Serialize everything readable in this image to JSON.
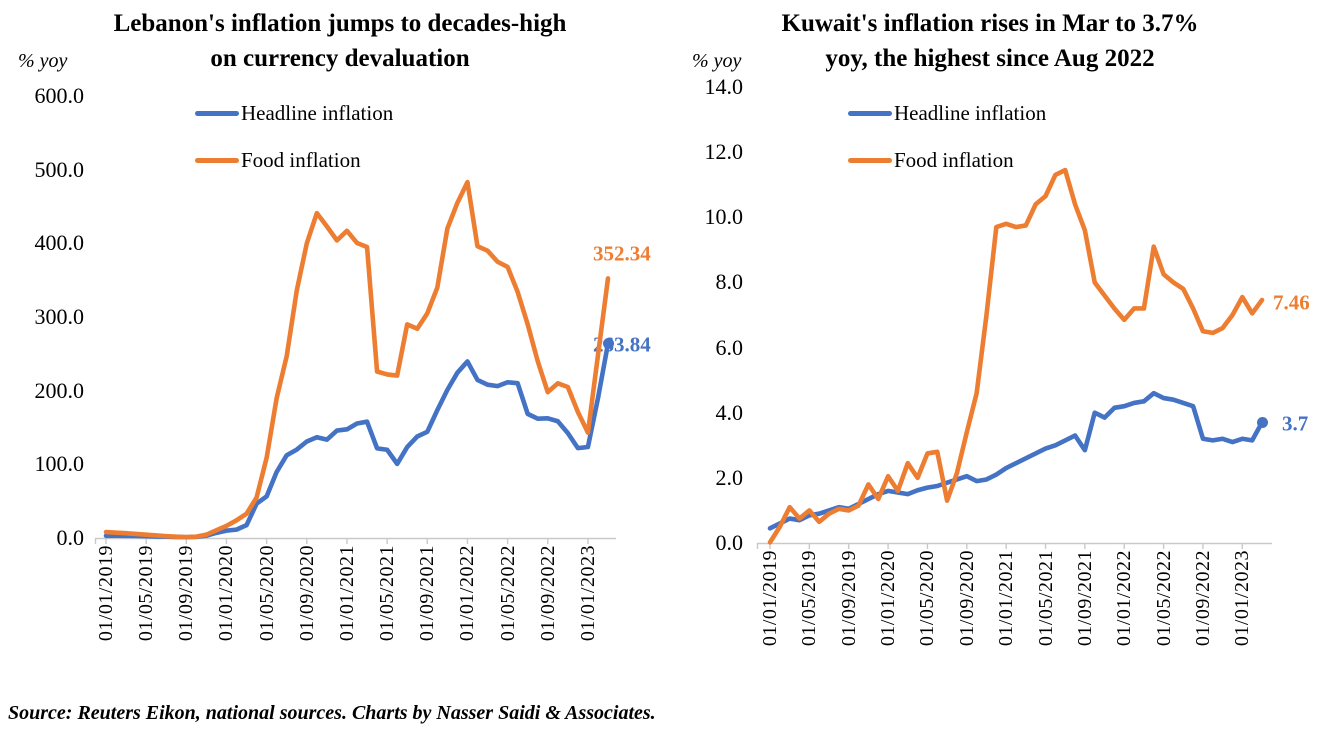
{
  "figure": {
    "source_note": "Source: Reuters Eikon, national sources. Charts by Nasser Saidi & Associates."
  },
  "x_tick_labels": [
    "01/01/2019",
    "01/05/2019",
    "01/09/2019",
    "01/01/2020",
    "01/05/2020",
    "01/09/2020",
    "01/01/2021",
    "01/05/2021",
    "01/09/2021",
    "01/01/2022",
    "01/05/2022",
    "01/09/2022",
    "01/01/2023"
  ],
  "chart_data": [
    {
      "type": "line",
      "title": "Lebanon's inflation jumps to decades-high on currency devaluation",
      "title_lines": [
        "Lebanon's inflation jumps to decades-high",
        "on currency devaluation"
      ],
      "unit_label": "% yoy",
      "ylim": [
        0,
        600
      ],
      "ytick_labels": [
        "600.0",
        "500.0",
        "400.0",
        "300.0",
        "200.0",
        "100.0",
        "0.0"
      ],
      "x_start": "01/2019",
      "x_end": "03/2023",
      "x_frequency": "monthly",
      "grid": false,
      "legend_position": "top-left-inside",
      "series": [
        {
          "name": "Headline inflation",
          "color": "#4472C4",
          "end_dot": true,
          "last_value_label": "263.84",
          "values": [
            3.0,
            3.1,
            3.0,
            2.7,
            2.5,
            2.0,
            1.8,
            1.5,
            1.2,
            1.6,
            3.2,
            7.0,
            10.0,
            11.4,
            17.5,
            46.6,
            56.5,
            89.7,
            112.4,
            120.0,
            131.0,
            136.8,
            133.5,
            145.8,
            147.5,
            155.4,
            157.9,
            121.7,
            119.8,
            100.6,
            123.4,
            137.8,
            144.1,
            173.6,
            201.1,
            224.4,
            239.7,
            214.6,
            208.1,
            206.2,
            211.4,
            210.1,
            168.5,
            161.9,
            162.5,
            158.5,
            142.4,
            122.0,
            123.5,
            189.7,
            263.84
          ]
        },
        {
          "name": "Food inflation",
          "color": "#ED7D31",
          "end_dot": false,
          "last_value_label": "352.34",
          "values": [
            8.0,
            7.2,
            6.5,
            5.5,
            4.5,
            3.5,
            2.5,
            1.8,
            1.2,
            1.8,
            4.5,
            10.5,
            16.5,
            24.0,
            33.0,
            55.0,
            109.0,
            190.0,
            247.0,
            336.0,
            400.0,
            441.0,
            423.0,
            404.0,
            417.0,
            400.5,
            395.0,
            226.0,
            222.0,
            220.5,
            290.0,
            284.0,
            305.0,
            340.0,
            420.0,
            455.0,
            483.1,
            396.0,
            390.0,
            375.0,
            368.0,
            334.0,
            290.0,
            240.0,
            198.0,
            210.0,
            205.0,
            171.0,
            143.0,
            248.0,
            352.34
          ]
        }
      ]
    },
    {
      "type": "line",
      "title": "Kuwait's inflation rises in Mar to 3.7% yoy, the highest since Aug 2022",
      "title_lines": [
        "Kuwait's inflation rises in Mar to 3.7%",
        "yoy, the highest since Aug 2022"
      ],
      "unit_label": "% yoy",
      "ylim": [
        0,
        14
      ],
      "ytick_labels": [
        "14.0",
        "12.0",
        "10.0",
        "8.0",
        "6.0",
        "4.0",
        "2.0",
        "0.0"
      ],
      "x_start": "01/2019",
      "x_end": "03/2023",
      "x_frequency": "monthly",
      "grid": false,
      "legend_position": "top-left-inside",
      "series": [
        {
          "name": "Headline inflation",
          "color": "#4472C4",
          "end_dot": true,
          "last_value_label": "3.7",
          "values": [
            0.45,
            0.6,
            0.75,
            0.7,
            0.85,
            0.9,
            1.0,
            1.1,
            1.05,
            1.2,
            1.35,
            1.5,
            1.6,
            1.55,
            1.5,
            1.62,
            1.7,
            1.75,
            1.85,
            1.95,
            2.05,
            1.9,
            1.95,
            2.1,
            2.3,
            2.45,
            2.6,
            2.75,
            2.9,
            3.0,
            3.15,
            3.3,
            2.85,
            4.0,
            3.85,
            4.15,
            4.2,
            4.3,
            4.35,
            4.6,
            4.45,
            4.4,
            4.3,
            4.2,
            3.2,
            3.15,
            3.2,
            3.1,
            3.2,
            3.15,
            3.7
          ]
        },
        {
          "name": "Food inflation",
          "color": "#ED7D31",
          "end_dot": false,
          "last_value_label": "7.46",
          "values": [
            0.02,
            0.5,
            1.1,
            0.75,
            1.0,
            0.65,
            0.9,
            1.05,
            1.0,
            1.15,
            1.8,
            1.35,
            2.05,
            1.6,
            2.45,
            2.0,
            2.75,
            2.8,
            1.3,
            2.15,
            3.4,
            4.6,
            7.0,
            9.7,
            9.8,
            9.7,
            9.75,
            10.4,
            10.65,
            11.3,
            11.45,
            10.4,
            9.6,
            8.0,
            7.6,
            7.2,
            6.85,
            7.2,
            7.2,
            9.1,
            8.25,
            8.0,
            7.8,
            7.2,
            6.5,
            6.45,
            6.6,
            7.0,
            7.55,
            7.05,
            7.46
          ]
        }
      ]
    }
  ]
}
